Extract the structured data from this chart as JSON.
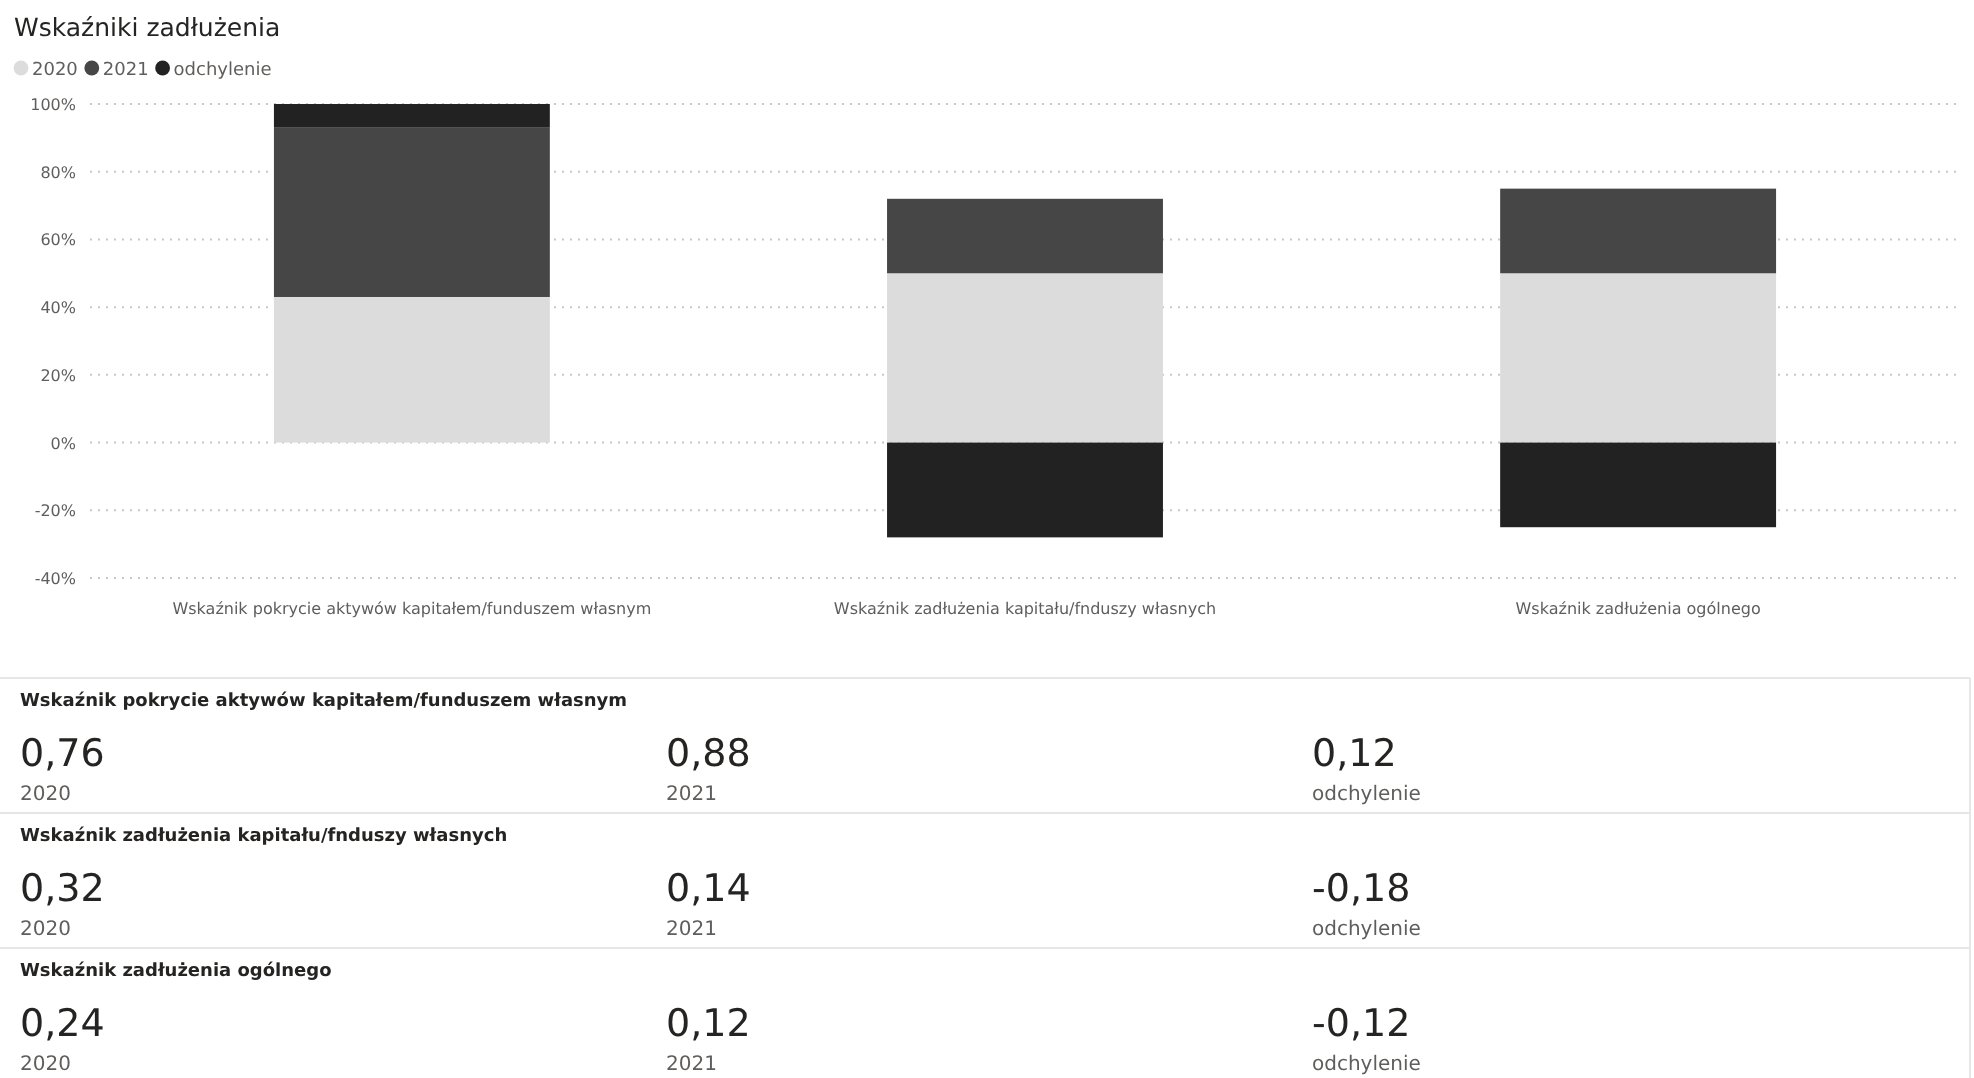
{
  "chart_data": [
    {
      "type": "bar",
      "title": "Wskaźniki zadłużenia",
      "stacked": true,
      "legend": "top left",
      "grid": "y",
      "categories": [
        "Wskaźnik pokrycie aktywów kapitałem/funduszem własnym",
        "Wskaźnik zadłużenia kapitału/fnduszy własnych",
        "Wskaźnik zadłużenia ogólnego"
      ],
      "series": [
        {
          "name": "2020",
          "color": "#dcdcdc",
          "values": [
            43,
            50,
            50
          ]
        },
        {
          "name": "2021",
          "color": "#464646",
          "values": [
            50,
            22,
            25
          ]
        },
        {
          "name": "odchylenie",
          "color": "#222222",
          "values": [
            7,
            -28,
            -25
          ]
        }
      ],
      "ylim": [
        -40,
        100
      ],
      "yticks": [
        {
          "value": -40,
          "label": "-40%"
        },
        {
          "value": -20,
          "label": "-20%"
        },
        {
          "value": 0,
          "label": "0%"
        },
        {
          "value": 20,
          "label": "20%"
        },
        {
          "value": 40,
          "label": "40%"
        },
        {
          "value": 60,
          "label": "60%"
        },
        {
          "value": 80,
          "label": "80%"
        },
        {
          "value": 100,
          "label": "100%"
        }
      ]
    },
    {
      "type": "other",
      "title": "Wskaźnik pokrycie aktywów kapitałem/funduszem własnym",
      "annotations": [
        "0,76",
        "2020",
        "0,88",
        "2021",
        "0,12",
        "odchylenie"
      ]
    },
    {
      "type": "other",
      "title": "Wskaźnik zadłużenia kapitału/fnduszy własnych",
      "annotations": [
        "0,32",
        "2020",
        "0,14",
        "2021",
        "-0,18",
        "odchylenie"
      ]
    },
    {
      "type": "other",
      "title": "Wskaźnik zadłużenia ogólnego",
      "annotations": [
        "0,24",
        "2020",
        "0,12",
        "2021",
        "-0,12",
        "odchylenie"
      ]
    }
  ]
}
